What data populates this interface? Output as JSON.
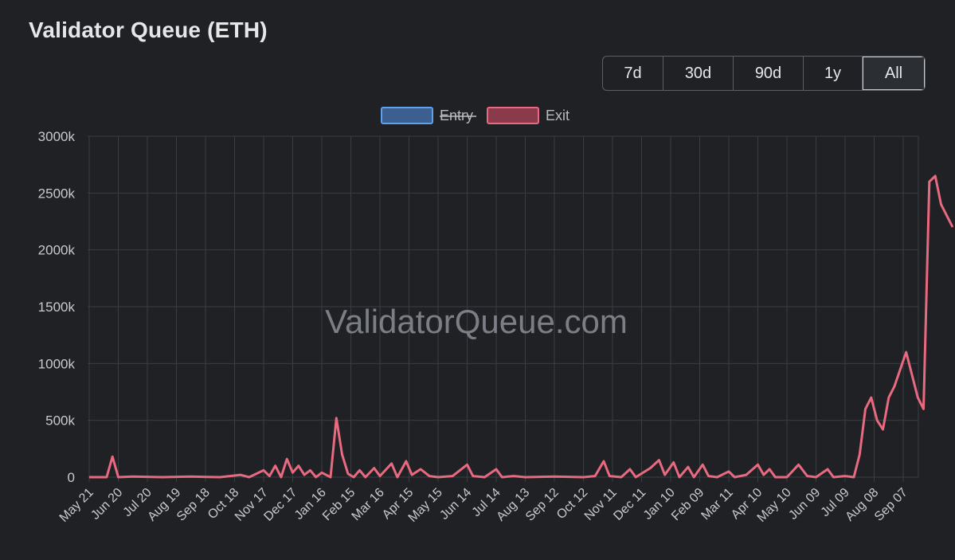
{
  "header": {
    "title": "Validator Queue (ETH)"
  },
  "range_buttons": [
    {
      "label": "7d",
      "active": false
    },
    {
      "label": "30d",
      "active": false
    },
    {
      "label": "90d",
      "active": false
    },
    {
      "label": "1y",
      "active": false
    },
    {
      "label": "All",
      "active": true
    }
  ],
  "watermark": "ValidatorQueue.com",
  "colors": {
    "background": "#1f2125",
    "grid": "#3a3d42",
    "entry": "#4a90d9",
    "exit": "#e86a80",
    "text": "#c8cacd"
  },
  "chart_data": {
    "type": "line",
    "title": "",
    "xlabel": "",
    "ylabel": "",
    "ylim": [
      0,
      3000
    ],
    "y_unit_suffix": "k",
    "y_ticks": [
      "0",
      "500k",
      "1000k",
      "1500k",
      "2000k",
      "2500k",
      "3000k"
    ],
    "x_ticks": [
      "May 21",
      "Jun 20",
      "Jul 20",
      "Aug 19",
      "Sep 18",
      "Oct 18",
      "Nov 17",
      "Dec 17",
      "Jan 16",
      "Feb 15",
      "Mar 16",
      "Apr 15",
      "May 15",
      "Jun 14",
      "Jul 14",
      "Aug 13",
      "Sep 12",
      "Oct 12",
      "Nov 11",
      "Dec 11",
      "Jan 10",
      "Feb 09",
      "Mar 11",
      "Apr 10",
      "May 10",
      "Jun 09",
      "Jul 09",
      "Aug 08",
      "Sep 07"
    ],
    "grid": true,
    "legend_position": "top-center",
    "series": [
      {
        "name": "Entry",
        "hidden": true,
        "values": []
      },
      {
        "name": "Exit",
        "hidden": false,
        "values": [
          [
            0,
            0
          ],
          [
            0.6,
            0
          ],
          [
            0.8,
            180
          ],
          [
            1.0,
            0
          ],
          [
            1.5,
            5
          ],
          [
            2.5,
            0
          ],
          [
            3.5,
            5
          ],
          [
            4.5,
            0
          ],
          [
            5.2,
            20
          ],
          [
            5.5,
            0
          ],
          [
            6.0,
            60
          ],
          [
            6.2,
            10
          ],
          [
            6.4,
            100
          ],
          [
            6.6,
            0
          ],
          [
            6.8,
            160
          ],
          [
            7.0,
            40
          ],
          [
            7.2,
            100
          ],
          [
            7.4,
            20
          ],
          [
            7.6,
            60
          ],
          [
            7.8,
            0
          ],
          [
            8.0,
            40
          ],
          [
            8.3,
            0
          ],
          [
            8.5,
            520
          ],
          [
            8.7,
            200
          ],
          [
            8.9,
            30
          ],
          [
            9.1,
            0
          ],
          [
            9.3,
            60
          ],
          [
            9.5,
            0
          ],
          [
            9.8,
            80
          ],
          [
            10.0,
            10
          ],
          [
            10.4,
            120
          ],
          [
            10.6,
            0
          ],
          [
            10.9,
            140
          ],
          [
            11.1,
            20
          ],
          [
            11.4,
            70
          ],
          [
            11.7,
            10
          ],
          [
            12.0,
            0
          ],
          [
            12.5,
            10
          ],
          [
            13.0,
            110
          ],
          [
            13.2,
            10
          ],
          [
            13.6,
            0
          ],
          [
            14.0,
            70
          ],
          [
            14.2,
            0
          ],
          [
            14.6,
            10
          ],
          [
            15.0,
            0
          ],
          [
            16.0,
            5
          ],
          [
            17.0,
            0
          ],
          [
            17.4,
            10
          ],
          [
            17.7,
            140
          ],
          [
            17.9,
            10
          ],
          [
            18.3,
            0
          ],
          [
            18.6,
            70
          ],
          [
            18.8,
            0
          ],
          [
            19.3,
            80
          ],
          [
            19.6,
            150
          ],
          [
            19.8,
            20
          ],
          [
            20.1,
            130
          ],
          [
            20.3,
            0
          ],
          [
            20.6,
            90
          ],
          [
            20.8,
            0
          ],
          [
            21.1,
            110
          ],
          [
            21.3,
            10
          ],
          [
            21.6,
            0
          ],
          [
            22.0,
            50
          ],
          [
            22.2,
            0
          ],
          [
            22.6,
            20
          ],
          [
            23.0,
            110
          ],
          [
            23.2,
            20
          ],
          [
            23.4,
            70
          ],
          [
            23.6,
            0
          ],
          [
            24.0,
            0
          ],
          [
            24.4,
            110
          ],
          [
            24.7,
            10
          ],
          [
            25.0,
            0
          ],
          [
            25.4,
            70
          ],
          [
            25.6,
            0
          ],
          [
            26.0,
            10
          ],
          [
            26.3,
            0
          ],
          [
            26.5,
            200
          ],
          [
            26.7,
            600
          ],
          [
            26.9,
            700
          ],
          [
            27.1,
            500
          ],
          [
            27.3,
            420
          ],
          [
            27.5,
            700
          ],
          [
            27.7,
            800
          ],
          [
            27.9,
            950
          ],
          [
            28.1,
            1100
          ],
          [
            28.3,
            900
          ],
          [
            28.5,
            700
          ],
          [
            28.7,
            600
          ],
          [
            28.9,
            2600
          ],
          [
            29.1,
            2650
          ],
          [
            29.3,
            2400
          ],
          [
            29.5,
            2300
          ],
          [
            29.7,
            2200
          ]
        ]
      }
    ]
  }
}
